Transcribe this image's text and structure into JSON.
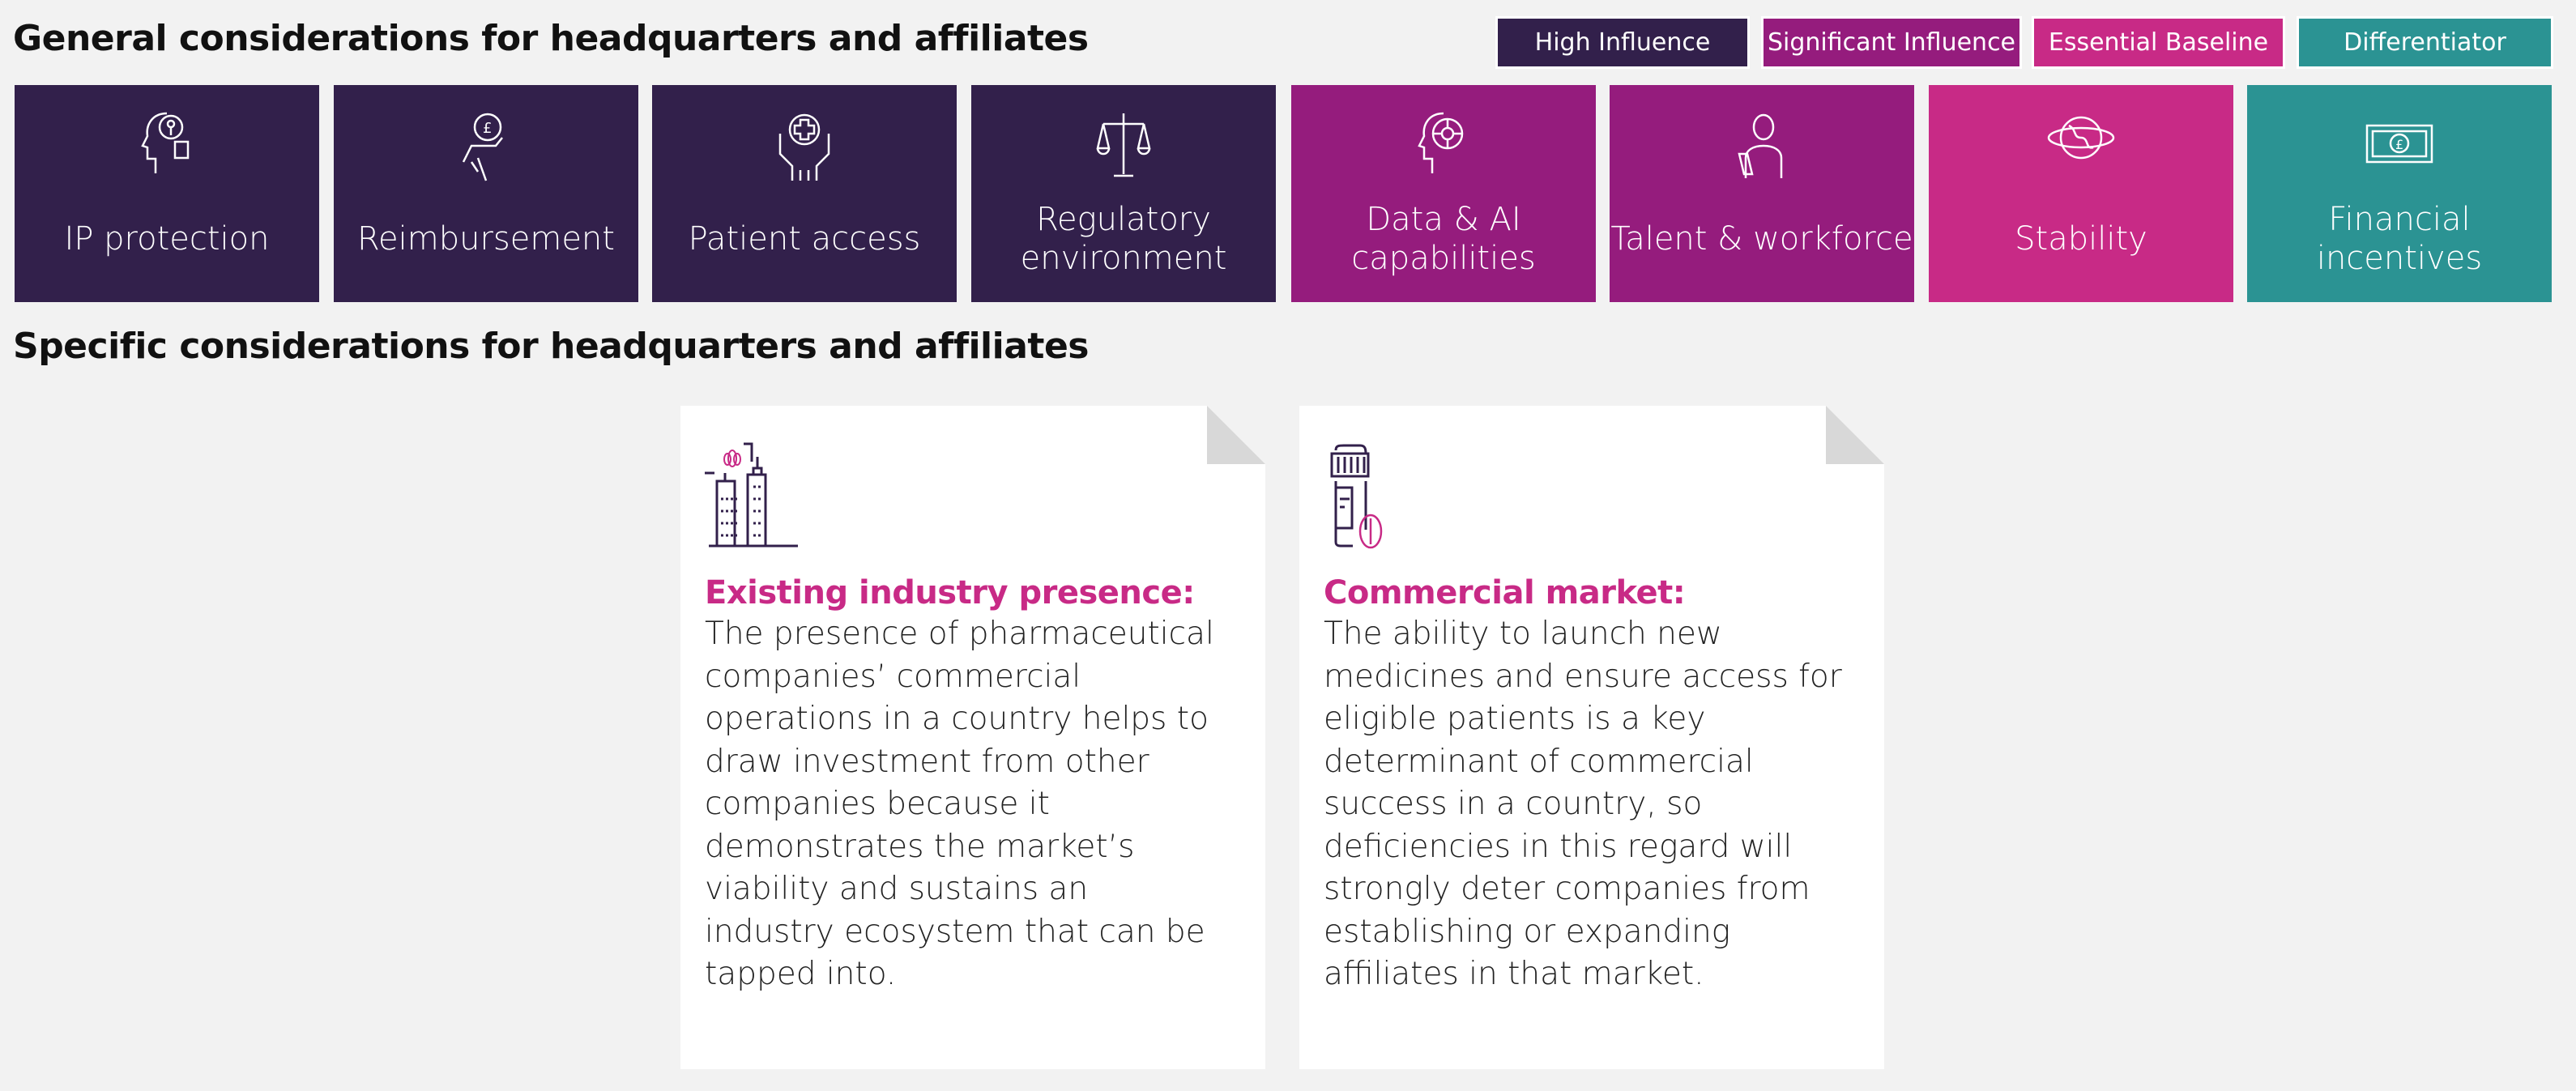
{
  "general_title": "General considerations for headquarters and affiliates",
  "specific_title": "Specific considerations for headquarters and affiliates",
  "legend": [
    {
      "label": "High Influence",
      "color": "#32204b"
    },
    {
      "label": "Significant Influence",
      "color": "#951c7d"
    },
    {
      "label": "Essential Baseline",
      "color": "#c82a86"
    },
    {
      "label": "Differentiator",
      "color": "#2b9393"
    }
  ],
  "tiles": [
    {
      "label": "IP protection",
      "icon": "head-lock-icon",
      "category": "High Influence"
    },
    {
      "label": "Reimbursement",
      "icon": "hand-coin-pound-icon",
      "category": "High Influence"
    },
    {
      "label": "Patient access",
      "icon": "hands-medical-cross-icon",
      "category": "High Influence"
    },
    {
      "label": "Regulatory environment",
      "icon": "scales-icon",
      "category": "High Influence"
    },
    {
      "label": "Data & AI capabilities",
      "icon": "head-circuit-icon",
      "category": "Significant Influence"
    },
    {
      "label": "Talent & workforce",
      "icon": "scientist-icon",
      "category": "Significant Influence"
    },
    {
      "label": "Stability",
      "icon": "globe-icon",
      "category": "Essential Baseline"
    },
    {
      "label": "Financial incentives",
      "icon": "banknote-pound-icon",
      "category": "Differentiator"
    }
  ],
  "cards": [
    {
      "heading": "Existing industry presence:",
      "icon": "city-buildings-icon",
      "body": "The presence of pharmaceutical companies’ commercial operations in a country helps to draw investment from other companies because it demonstrates the market’s viability and sustains an industry ecosystem that can be tapped into."
    },
    {
      "heading": "Commercial market:",
      "icon": "medicine-bottle-pill-icon",
      "body": "The ability to launch new medicines and ensure access for eligible patients is a key determinant of commercial success in a country, so deficiencies in this regard will strongly deter companies from establishing or expanding affiliates in that market."
    }
  ]
}
